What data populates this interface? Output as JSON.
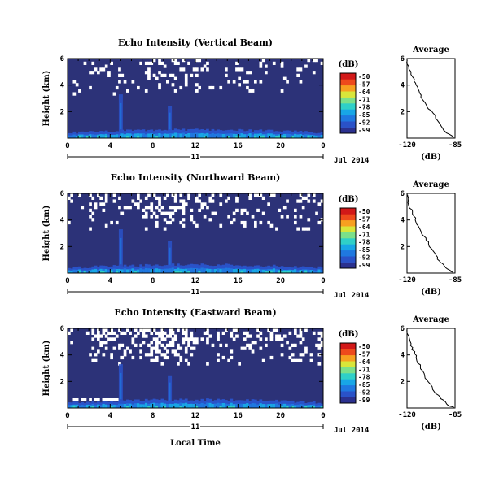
{
  "figure": {
    "xlabel": "Local Time",
    "date_label": "Jul 2014",
    "day_label": "11",
    "colorbar_label": "(dB)",
    "colorbar_ticks": [
      "-50",
      "-57",
      "-64",
      "-71",
      "-78",
      "-85",
      "-92",
      "-99"
    ],
    "colorscale": [
      "#2b318f",
      "#2a52c8",
      "#1f78e0",
      "#18a6e6",
      "#2fd0c8",
      "#7be08a",
      "#d8e63a",
      "#f7a020",
      "#ee4a1c",
      "#d21818"
    ]
  },
  "chart_data": [
    {
      "type": "heatmap",
      "title": "Echo Intensity (Vertical Beam)",
      "ylabel": "Height (km)",
      "x_ticks": [
        "0",
        "4",
        "8",
        "12",
        "16",
        "20",
        "0"
      ],
      "y_ticks": [
        "2",
        "4",
        "6"
      ],
      "xlim": [
        0,
        24
      ],
      "ylim": [
        0,
        6
      ],
      "zlim": [
        -99,
        -50
      ],
      "note": "mostly minimum echo; enhanced echo near ground and plumes near 5 h and 9.5 h; white gaps above 4 km"
    },
    {
      "type": "line",
      "title": "Average",
      "xlabel": "(dB)",
      "x_ticks": [
        "-120",
        "-85"
      ],
      "y_ticks": [
        "2",
        "4",
        "6"
      ],
      "xlim": [
        -120,
        -85
      ],
      "ylim": [
        0,
        6
      ],
      "x": [
        -120,
        -119,
        -117,
        -116,
        -115,
        -113,
        -112,
        -111,
        -110,
        -108,
        -106,
        -104,
        -101,
        -99,
        -97,
        -95,
        -93,
        -91,
        -88,
        -86
      ],
      "y": [
        5.9,
        5.4,
        5.0,
        4.6,
        4.3,
        4.0,
        3.7,
        3.4,
        3.1,
        2.8,
        2.5,
        2.2,
        1.9,
        1.5,
        1.2,
        0.9,
        0.6,
        0.4,
        0.2,
        0.05
      ]
    },
    {
      "type": "heatmap",
      "title": "Echo Intensity (Northward Beam)",
      "ylabel": "Height (km)",
      "x_ticks": [
        "0",
        "4",
        "8",
        "12",
        "16",
        "20",
        "0"
      ],
      "y_ticks": [
        "2",
        "4",
        "6"
      ],
      "xlim": [
        0,
        24
      ],
      "ylim": [
        0,
        6
      ],
      "zlim": [
        -99,
        -50
      ]
    },
    {
      "type": "line",
      "title": "Average",
      "xlabel": "(dB)",
      "x_ticks": [
        "-120",
        "-85"
      ],
      "y_ticks": [
        "2",
        "4",
        "6"
      ],
      "xlim": [
        -120,
        -85
      ],
      "ylim": [
        0,
        6
      ],
      "x": [
        -120,
        -119,
        -118,
        -116,
        -115,
        -114,
        -113,
        -111,
        -110,
        -108,
        -106,
        -104,
        -102,
        -100,
        -98,
        -96,
        -94,
        -92,
        -89,
        -86
      ],
      "y": [
        5.9,
        5.3,
        4.9,
        4.6,
        4.3,
        4.0,
        3.7,
        3.4,
        3.1,
        2.8,
        2.5,
        2.2,
        1.8,
        1.5,
        1.2,
        0.9,
        0.7,
        0.4,
        0.2,
        0.05
      ]
    },
    {
      "type": "heatmap",
      "title": "Echo Intensity (Eastward Beam)",
      "ylabel": "Height (km)",
      "x_ticks": [
        "0",
        "4",
        "8",
        "12",
        "16",
        "20",
        "0"
      ],
      "y_ticks": [
        "2",
        "4",
        "6"
      ],
      "xlim": [
        0,
        24
      ],
      "ylim": [
        0,
        6
      ],
      "zlim": [
        -99,
        -50
      ]
    },
    {
      "type": "line",
      "title": "Average",
      "xlabel": "(dB)",
      "x_ticks": [
        "-120",
        "-85"
      ],
      "y_ticks": [
        "2",
        "4",
        "6"
      ],
      "xlim": [
        -120,
        -85
      ],
      "ylim": [
        0,
        6
      ],
      "x": [
        -120,
        -119,
        -118,
        -117,
        -116,
        -114,
        -113,
        -112,
        -110,
        -109,
        -107,
        -105,
        -103,
        -101,
        -99,
        -96,
        -94,
        -91,
        -89,
        -86
      ],
      "y": [
        5.9,
        5.4,
        5.0,
        4.7,
        4.4,
        4.1,
        3.8,
        3.4,
        3.1,
        2.8,
        2.4,
        2.1,
        1.8,
        1.4,
        1.1,
        0.8,
        0.6,
        0.3,
        0.15,
        0.05
      ]
    }
  ]
}
